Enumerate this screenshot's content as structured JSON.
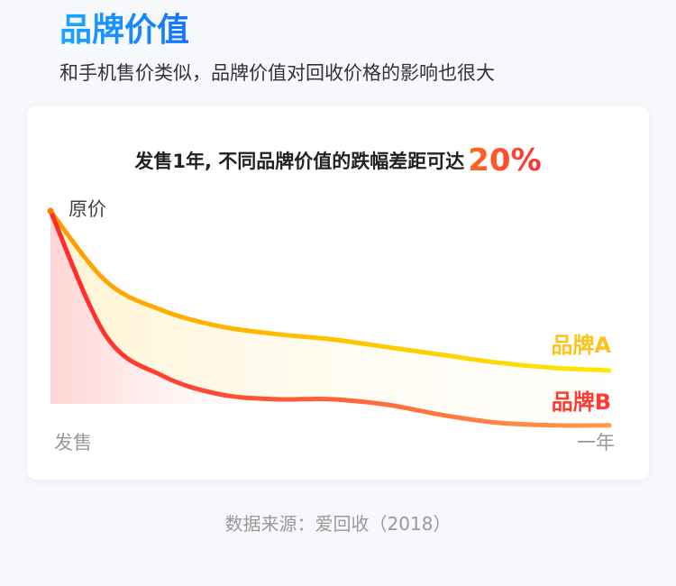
{
  "header": {
    "title": "品牌价值",
    "subtitle": "和手机售价类似，品牌价值对回收价格的影响也很大"
  },
  "card": {
    "headline_text": "发售1年, 不同品牌价值的跌幅差距可达",
    "headline_highlight": "20%"
  },
  "source": "数据来源：爱回收（2018）",
  "colors": {
    "title_blue": "#1e8fff",
    "brand_a_start": "#ff9d00",
    "brand_a_end": "#ffe800",
    "brand_b_start": "#ff2a2a",
    "brand_b_end": "#ff9a4a",
    "highlight": "#ff4a2e"
  },
  "chart_data": {
    "type": "line",
    "start_label": "原价",
    "x_labels": [
      "发售",
      "一年"
    ],
    "x": [
      0,
      0.1,
      0.2,
      0.3,
      0.4,
      0.5,
      0.6,
      0.7,
      0.8,
      0.9,
      1.0
    ],
    "ylim": [
      0,
      100
    ],
    "series": [
      {
        "name": "品牌A",
        "values": [
          100,
          73,
          62,
          56,
          53,
          51,
          48,
          45,
          42,
          40,
          39
        ]
      },
      {
        "name": "品牌B",
        "values": [
          100,
          52,
          37,
          30,
          28,
          28,
          26,
          22,
          19,
          18,
          18
        ]
      }
    ]
  }
}
